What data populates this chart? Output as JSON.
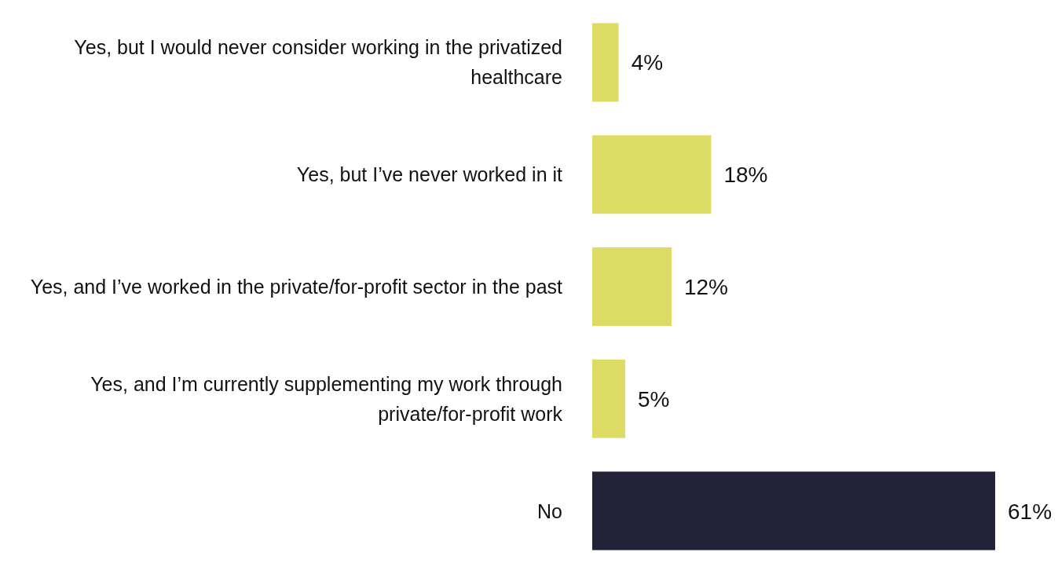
{
  "chart_data": {
    "type": "bar",
    "orientation": "horizontal",
    "categories": [
      "Yes, but I would never consider working in the privatized healthcare",
      "Yes, but I’ve never worked in it",
      "Yes, and I’ve worked in the private/for-profit sector in the past",
      "Yes, and I’m currently supplementing my work through private/for-profit work",
      "No"
    ],
    "values": [
      4,
      18,
      12,
      5,
      61
    ],
    "colors": [
      "#dcdb63",
      "#dcdb63",
      "#dcdb63",
      "#dcdb63",
      "#222238"
    ],
    "value_labels": [
      "4%",
      "18%",
      "12%",
      "5%",
      "61%"
    ]
  }
}
